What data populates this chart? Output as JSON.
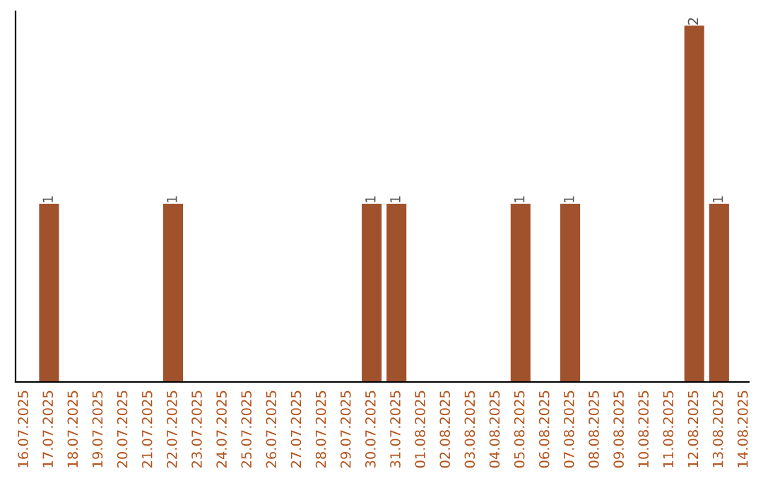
{
  "chart_data": {
    "type": "bar",
    "categories": [
      "16.07.2025",
      "17.07.2025",
      "18.07.2025",
      "19.07.2025",
      "20.07.2025",
      "21.07.2025",
      "22.07.2025",
      "23.07.2025",
      "24.07.2025",
      "25.07.2025",
      "26.07.2025",
      "27.07.2025",
      "28.07.2025",
      "29.07.2025",
      "30.07.2025",
      "31.07.2025",
      "01.08.2025",
      "02.08.2025",
      "03.08.2025",
      "04.08.2025",
      "05.08.2025",
      "06.08.2025",
      "07.08.2025",
      "08.08.2025",
      "09.08.2025",
      "10.08.2025",
      "11.08.2025",
      "12.08.2025",
      "13.08.2025",
      "14.08.2025"
    ],
    "values": [
      0,
      1,
      0,
      0,
      0,
      0,
      1,
      0,
      0,
      0,
      0,
      0,
      0,
      0,
      1,
      1,
      0,
      0,
      0,
      0,
      1,
      0,
      1,
      0,
      0,
      0,
      0,
      2,
      1,
      0
    ],
    "value_labels": [
      null,
      "1",
      null,
      null,
      null,
      null,
      "1",
      null,
      null,
      null,
      null,
      null,
      null,
      null,
      "1",
      "1",
      null,
      null,
      null,
      null,
      "1",
      null,
      "1",
      null,
      null,
      null,
      null,
      "2",
      "1",
      null
    ],
    "color": "#a0522d",
    "ylim": [
      0,
      2.08
    ],
    "tick_labels": "x",
    "grid": false,
    "legend": false
  }
}
